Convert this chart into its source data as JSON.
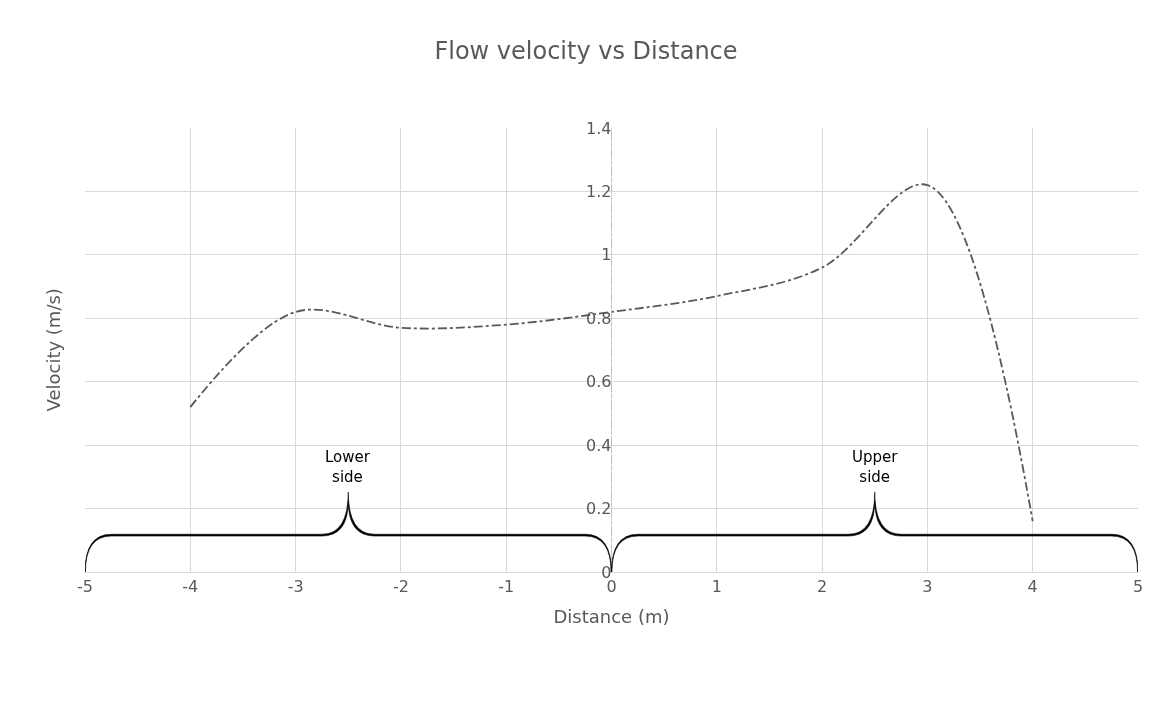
{
  "chart_data": {
    "type": "line",
    "title": "Flow velocity vs Distance",
    "xlabel": "Distance (m)",
    "ylabel": "Velocity (m/s)",
    "x": [
      -4,
      -3,
      -2,
      -1,
      0,
      1,
      2,
      3,
      4
    ],
    "series": [
      {
        "color": "#595959",
        "values": [
          0.52,
          0.82,
          0.77,
          0.78,
          0.82,
          0.87,
          0.96,
          1.22,
          0.16
        ]
      }
    ],
    "xlim": [
      -5,
      5
    ],
    "xticks": [
      -5,
      -4,
      -3,
      -2,
      -1,
      0,
      1,
      2,
      3,
      4,
      5
    ],
    "ylim": [
      0,
      1.4
    ],
    "yticks": [
      0,
      0.2,
      0.4,
      0.6,
      0.8,
      1,
      1.2,
      1.4
    ],
    "grid": true,
    "marker": "none",
    "line_style": "dashed",
    "ref_lines": [
      {
        "axis": "x",
        "value": 0,
        "color": "#bfbfbf",
        "line_style": "dashed"
      }
    ],
    "annotations": [
      "Lower\nside",
      "Upper\nside"
    ]
  }
}
